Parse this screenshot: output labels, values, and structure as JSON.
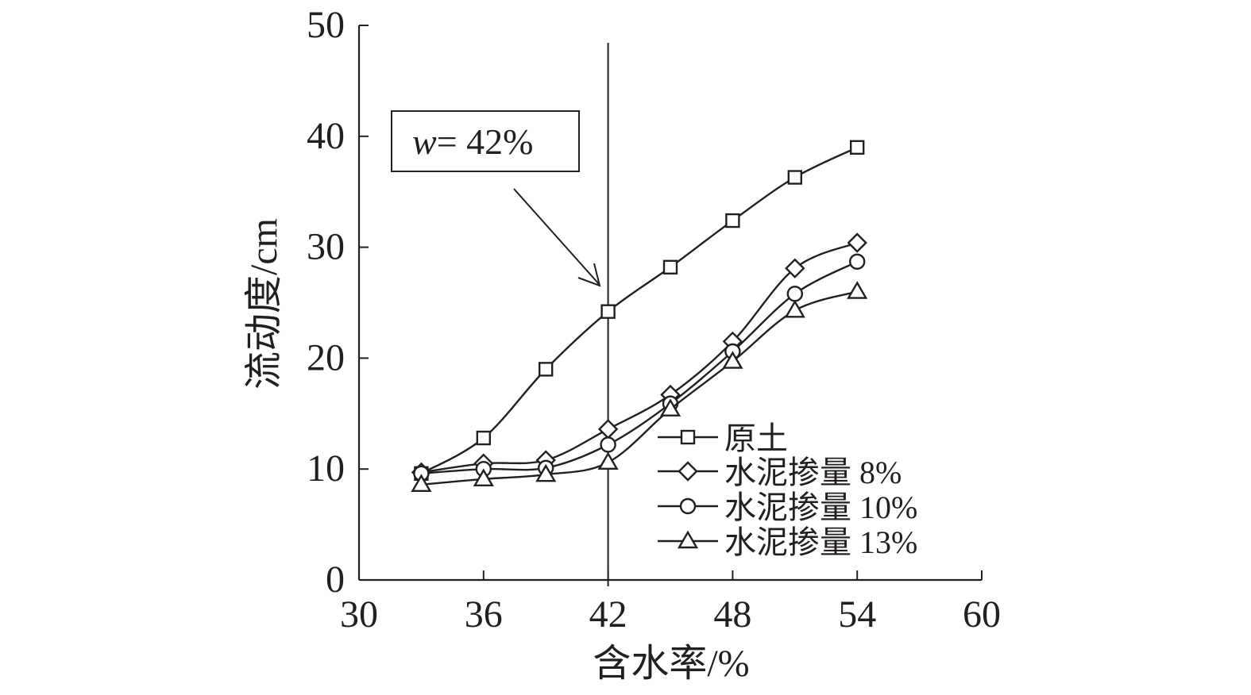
{
  "chart_data": {
    "type": "line",
    "title": "",
    "xlabel": "含水率/%",
    "ylabel": "流动度/cm",
    "xlim": [
      30,
      60
    ],
    "ylim": [
      0,
      50
    ],
    "xticks": [
      30,
      36,
      42,
      48,
      54,
      60
    ],
    "yticks": [
      0,
      10,
      20,
      30,
      40,
      50
    ],
    "grid": false,
    "legend_position": "bottom-right",
    "x": [
      33,
      36,
      39,
      42,
      45,
      48,
      51,
      54
    ],
    "series": [
      {
        "name": "原土",
        "marker": "square",
        "values": [
          9.6,
          12.8,
          19.0,
          24.2,
          28.2,
          32.4,
          36.3,
          39.0
        ]
      },
      {
        "name": "水泥掺量 8%",
        "marker": "diamond",
        "values": [
          9.7,
          10.5,
          10.8,
          13.6,
          16.7,
          21.5,
          28.1,
          30.4
        ]
      },
      {
        "name": "水泥掺量 10%",
        "marker": "circle",
        "values": [
          9.6,
          10.0,
          10.1,
          12.2,
          15.9,
          20.6,
          25.8,
          28.7
        ]
      },
      {
        "name": "水泥掺量 13%",
        "marker": "triangle",
        "values": [
          8.6,
          9.1,
          9.5,
          10.6,
          15.4,
          19.7,
          24.3,
          26.0
        ]
      }
    ],
    "annotation": {
      "label_prefix": "w",
      "label_suffix": "= 42%",
      "x": 42
    }
  }
}
